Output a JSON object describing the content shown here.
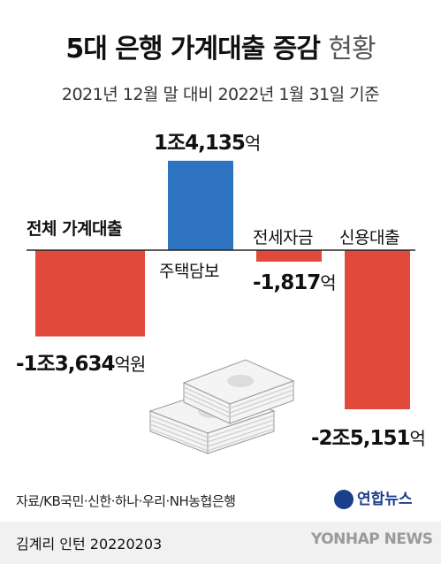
{
  "title": {
    "main": "5대 은행 가계대출 증감",
    "light": "현황"
  },
  "subtitle": "2021년 12월 말 대비 2022년 1월 31일 기준",
  "colors": {
    "positive": "#2e74c0",
    "negative": "#e1493a",
    "baseline": "#222222"
  },
  "chart_data": {
    "type": "bar",
    "unit": "억원",
    "categories": [
      "전체 가계대출",
      "주택담보",
      "전세자금",
      "신용대출"
    ],
    "values": [
      -13634,
      14135,
      -1817,
      -25151
    ],
    "value_labels": [
      {
        "num": "-1조3,634",
        "unit": "억원"
      },
      {
        "num": "1조4,135",
        "unit": "억"
      },
      {
        "num": "-1,817",
        "unit": "억"
      },
      {
        "num": "-2조5,151",
        "unit": "억"
      }
    ]
  },
  "source": "자료/KB국민·신한·하나·우리·NH농협은행",
  "byline": "김계리 인턴  20220203",
  "logo_text": "연합뉴스",
  "watermark": "YONHAP NEWS",
  "illustration_icon": "money-stack-icon"
}
